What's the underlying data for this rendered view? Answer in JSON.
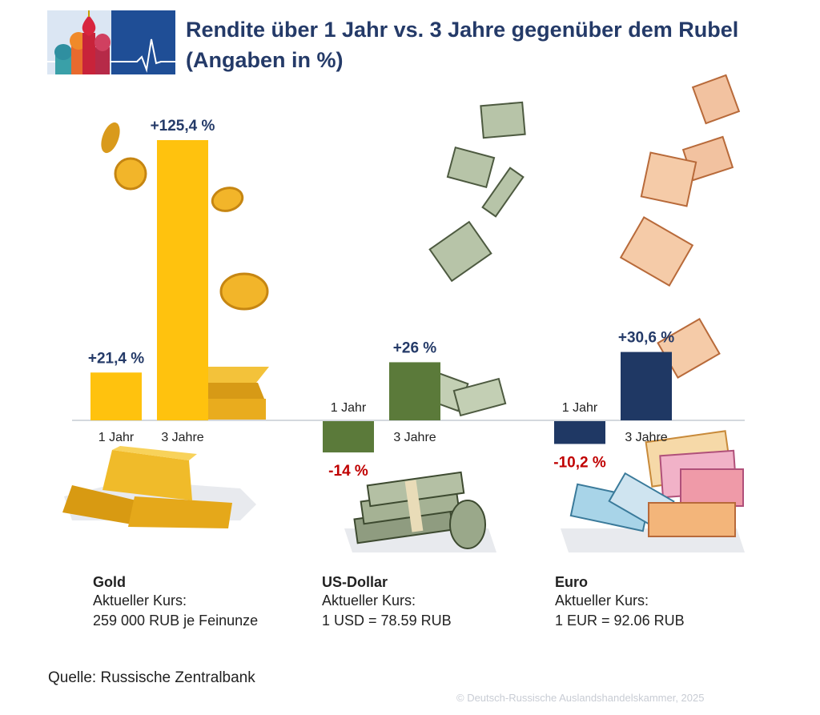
{
  "title_line1": "Rendite über 1 Jahr vs. 3 Jahre gegenüber dem Rubel",
  "title_line2": "(Angaben in %)",
  "colors": {
    "gold": "#ffc20e",
    "usd": "#5b7a3a",
    "euro": "#1f3864",
    "positive_label": "#243a68",
    "negative_label": "#c00000"
  },
  "icons": [
    "kremlin-logo",
    "gold-coins-icon",
    "gold-bars-icon",
    "dollar-bills-icon",
    "dollar-stacks-icon",
    "euro-bills-icon",
    "euro-stacks-icon"
  ],
  "chart_data": {
    "type": "bar",
    "categories": [
      "Gold",
      "US-Dollar",
      "Euro"
    ],
    "series": [
      {
        "name": "1 Jahr",
        "values": [
          21.4,
          -14,
          -10.2
        ]
      },
      {
        "name": "3 Jahre",
        "values": [
          125.4,
          26,
          30.6
        ]
      }
    ],
    "bar_labels": [
      [
        "+21,4 %",
        "-14 %",
        "-10,2 %"
      ],
      [
        "+125,4 %",
        "+26 %",
        "+30,6 %"
      ]
    ],
    "axis_labels": [
      [
        "1 Jahr",
        "1 Jahr",
        "1 Jahr"
      ],
      [
        "3 Jahre",
        "3 Jahre",
        "3 Jahre"
      ]
    ],
    "grid": false
  },
  "assets": [
    {
      "name": "Gold",
      "kurs_label": "Aktueller Kurs:",
      "kurs_value": "259 000 RUB je Feinunze"
    },
    {
      "name": "US-Dollar",
      "kurs_label": "Aktueller Kurs:",
      "kurs_value": "1 USD = 78.59 RUB"
    },
    {
      "name": "Euro",
      "kurs_label": "Aktueller Kurs:",
      "kurs_value": "1 EUR = 92.06 RUB"
    }
  ],
  "source": "Quelle: Russische Zentralbank",
  "copyright": "© Deutsch-Russische Auslandshandelskammer, 2025"
}
